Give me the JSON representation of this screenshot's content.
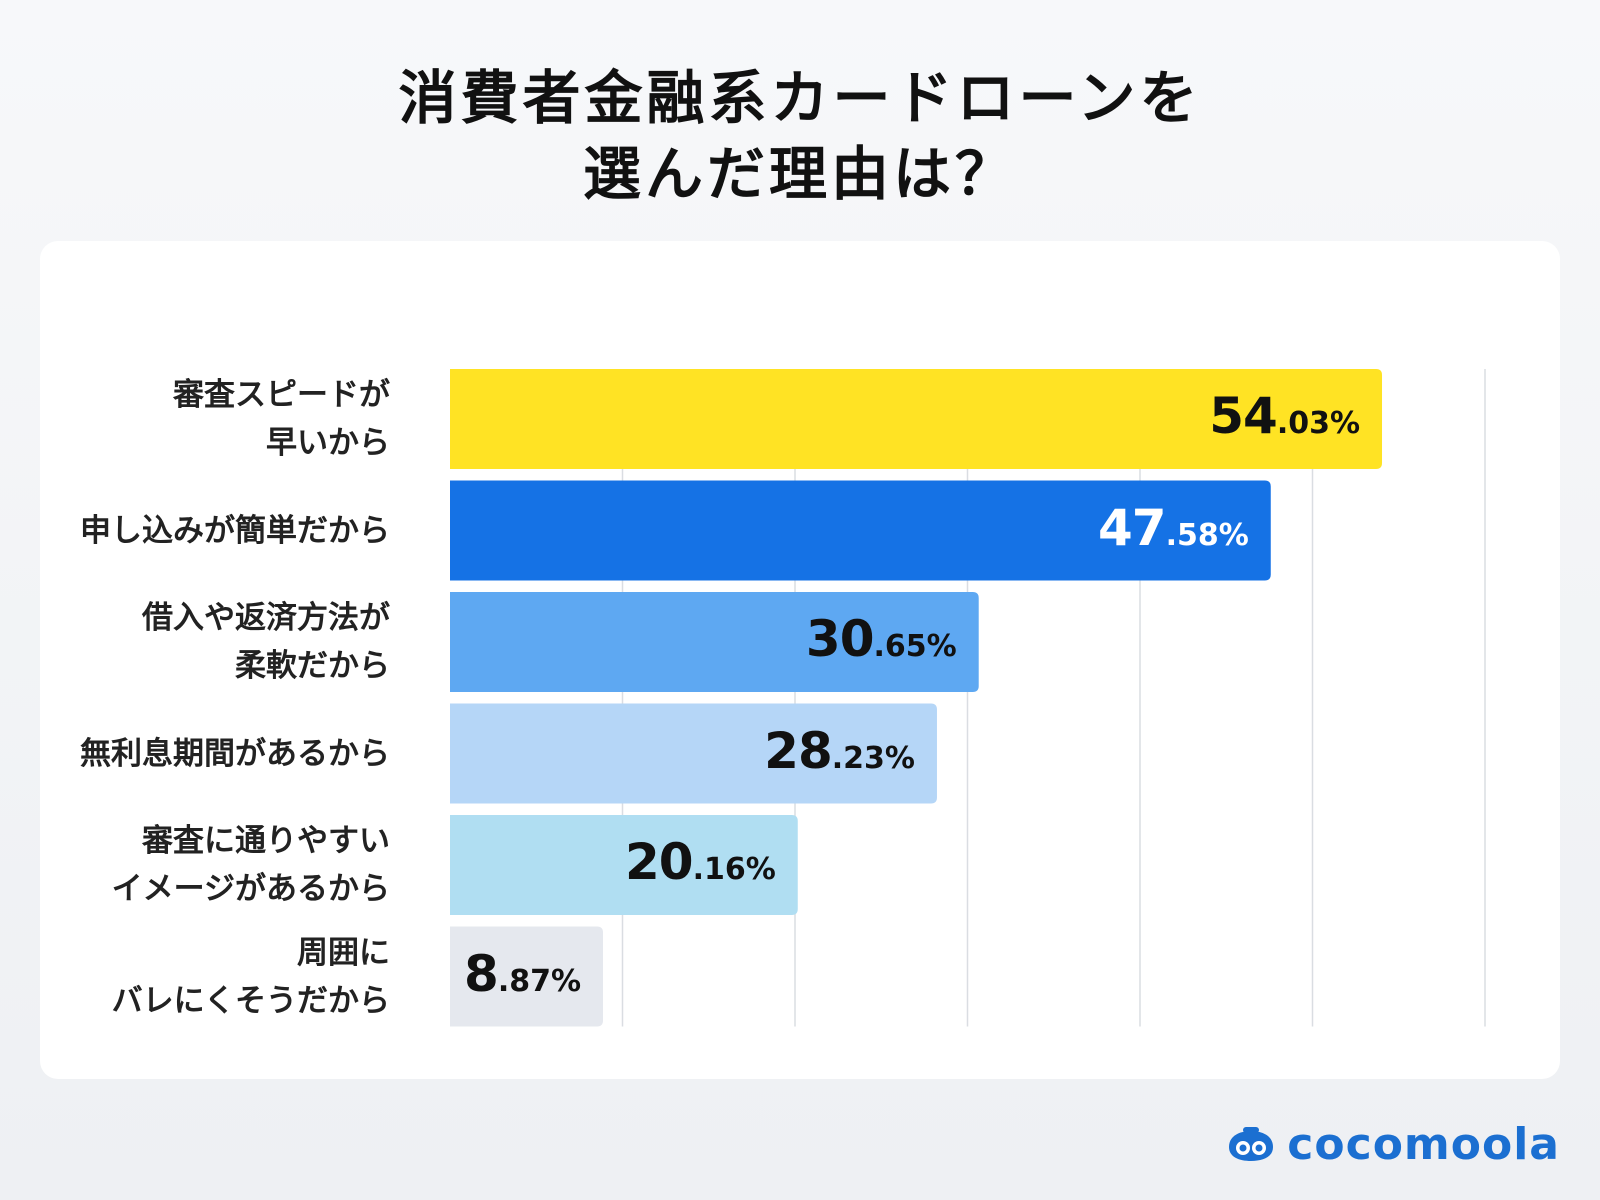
{
  "title_lines": [
    "消費者金融系カードローンを",
    "選んだ理由は？"
  ],
  "chart_data": {
    "type": "bar",
    "orientation": "horizontal",
    "title": "消費者金融系カードローンを選んだ理由は？",
    "categories": [
      [
        "審査スピードが",
        "早いから"
      ],
      [
        "申し込みが簡単だから"
      ],
      [
        "借入や返済方法が",
        "柔軟だから"
      ],
      [
        "無利息期間があるから"
      ],
      [
        "審査に通りやすい",
        "イメージがあるから"
      ],
      [
        "周囲に",
        "バレにくそうだから"
      ]
    ],
    "values": [
      54.03,
      47.58,
      30.65,
      28.23,
      20.16,
      8.87
    ],
    "value_labels": [
      {
        "int": "54",
        "dec": ".03%"
      },
      {
        "int": "47",
        "dec": ".58%"
      },
      {
        "int": "30",
        "dec": ".65%"
      },
      {
        "int": "28",
        "dec": ".23%"
      },
      {
        "int": "20",
        "dec": ".16%"
      },
      {
        "int": "8",
        "dec": ".87%"
      }
    ],
    "bar_colors": [
      "#ffe324",
      "#1572e5",
      "#5ea8f2",
      "#b5d6f7",
      "#b0def2",
      "#e5e8ee"
    ],
    "label_colors": [
      "#111111",
      "#ffffff",
      "#111111",
      "#111111",
      "#111111",
      "#111111"
    ],
    "xlim": [
      0,
      60
    ],
    "grid_step": 10,
    "grid": true,
    "xlabel": "",
    "ylabel": ""
  },
  "logo": {
    "text": "cocomoola",
    "color": "#1b6fd1"
  }
}
